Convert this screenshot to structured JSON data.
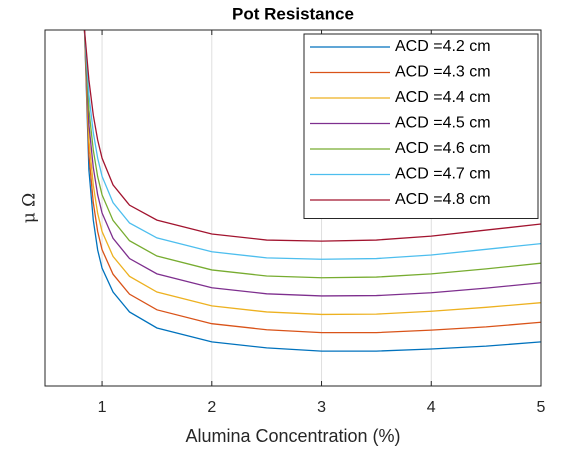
{
  "chart_data": {
    "type": "line",
    "title": "Pot Resistance",
    "xlabel": "Alumina Concentration (%)",
    "ylabel": "μ Ω",
    "x": [
      0.84,
      0.88,
      0.92,
      0.96,
      1,
      1.1,
      1.25,
      1.5,
      2,
      2.5,
      3,
      3.5,
      4,
      4.5,
      5
    ],
    "series": [
      {
        "name": "ACD =4.2 cm",
        "color": "#0072BD",
        "values": [
          100,
          60.7,
          46.6,
          38.2,
          33.1,
          26.4,
          20.8,
          16.3,
          12.4,
          10.7,
          9.8,
          9.8,
          10.4,
          11.2,
          12.4
        ]
      },
      {
        "name": "ACD =4.3 cm",
        "color": "#D95319",
        "values": [
          100,
          64.9,
          51.5,
          43.4,
          38.3,
          31.4,
          25.8,
          21.4,
          17.5,
          15.8,
          15.0,
          15.0,
          15.7,
          16.6,
          17.9
        ]
      },
      {
        "name": "ACD =4.4 cm",
        "color": "#EDB120",
        "values": [
          100,
          69.1,
          56.4,
          48.5,
          43.4,
          36.4,
          30.8,
          26.4,
          22.5,
          20.8,
          20.1,
          20.2,
          21.0,
          22.1,
          23.4
        ]
      },
      {
        "name": "ACD =4.5 cm",
        "color": "#7E2F8E",
        "values": [
          100,
          73.4,
          61.4,
          53.7,
          48.6,
          41.5,
          35.8,
          31.5,
          27.6,
          25.9,
          25.3,
          25.4,
          26.2,
          27.5,
          29.0
        ]
      },
      {
        "name": "ACD =4.6 cm",
        "color": "#77AC30",
        "values": [
          100,
          77.6,
          66.3,
          58.8,
          53.7,
          46.5,
          40.8,
          36.5,
          32.6,
          30.9,
          30.4,
          30.6,
          31.5,
          32.9,
          34.5
        ]
      },
      {
        "name": "ACD =4.7 cm",
        "color": "#4DBEEE",
        "values": [
          100,
          81.8,
          71.2,
          64.0,
          58.9,
          51.5,
          45.8,
          41.6,
          37.7,
          36.0,
          35.6,
          35.8,
          36.8,
          38.4,
          40.0
        ]
      },
      {
        "name": "ACD =4.8 cm",
        "color": "#A2142F",
        "values": [
          100,
          86.0,
          76.1,
          69.1,
          64.0,
          56.5,
          50.8,
          46.6,
          42.7,
          41.0,
          40.7,
          41.0,
          42.1,
          43.8,
          45.5
        ]
      }
    ],
    "xlim": [
      0.48,
      5
    ],
    "xticks": [
      1,
      2,
      3,
      4,
      5
    ],
    "ylim": [
      0,
      100
    ],
    "grid": true,
    "legend": "upper right"
  }
}
